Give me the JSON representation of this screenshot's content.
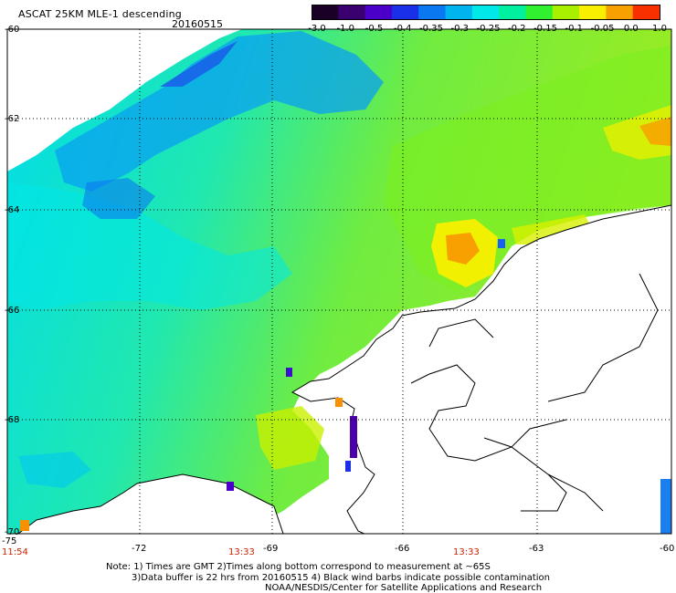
{
  "title": "ASCAT 25KM MLE-1 descending",
  "date": "20160515",
  "colorbar": {
    "labels": [
      "-3.0",
      "-1.0",
      "-0.5",
      "-0.4",
      "-0.35",
      "-0.3",
      "-0.25",
      "-0.2",
      "-0.15",
      "-0.1",
      "-0.05",
      "0.0",
      "1.0"
    ],
    "colors": [
      "#1a0026",
      "#3a0070",
      "#4a00c8",
      "#1a30e8",
      "#0a78f0",
      "#00b4f0",
      "#00e8e8",
      "#00f0a0",
      "#30f030",
      "#a8f000",
      "#f8f000",
      "#f8a000",
      "#f83000"
    ]
  },
  "lat_labels": [
    "-60",
    "-62",
    "-64",
    "-66",
    "-68",
    "-70"
  ],
  "lon_labels": [
    "-75",
    "-72",
    "-69",
    "-66",
    "-63",
    "-60"
  ],
  "times": [
    "11:54",
    "13:33",
    "13:33"
  ],
  "notes": [
    "Note: 1) Times are GMT 2)Times along bottom correspond to measurement at ~65S",
    "3)Data buffer is 22 hrs from 20160515 4) Black wind barbs indicate possible contamination",
    "NOAA/NESDIS/Center for Satellite Applications and Research"
  ]
}
